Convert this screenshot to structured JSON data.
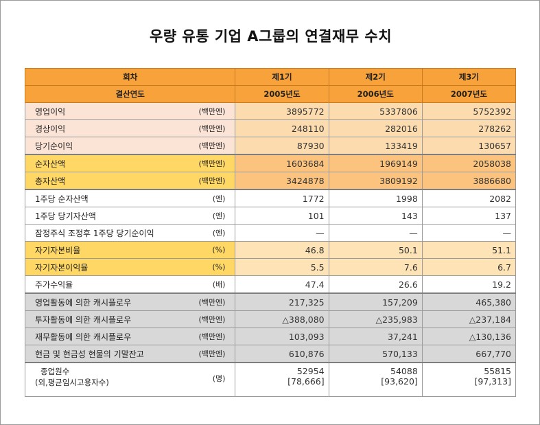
{
  "title": "우량 유통 기업 A그룹의 연결재무 수치",
  "header": {
    "row1_label": "회차",
    "row2_label": "결산연도",
    "periods": [
      "제1기",
      "제2기",
      "제3기"
    ],
    "years": [
      "2005년도",
      "2006년도",
      "2007년도"
    ]
  },
  "rows": [
    {
      "label": "영업이익",
      "unit": "(백만엔)",
      "values": [
        "3895772",
        "5337806",
        "5752392"
      ]
    },
    {
      "label": "경상이익",
      "unit": "(백만엔)",
      "values": [
        "248110",
        "282016",
        "278262"
      ]
    },
    {
      "label": "당기순이익",
      "unit": "(백만엔)",
      "values": [
        "87930",
        "133419",
        "130657"
      ]
    },
    {
      "label": "순자산액",
      "unit": "(백만엔)",
      "values": [
        "1603684",
        "1969149",
        "2058038"
      ]
    },
    {
      "label": "총자산액",
      "unit": "(백만엔)",
      "values": [
        "3424878",
        "3809192",
        "3886680"
      ]
    },
    {
      "label": "1주당 순자산액",
      "unit": "(엔)",
      "values": [
        "1772",
        "1998",
        "2082"
      ]
    },
    {
      "label": "1주당 당기자산액",
      "unit": "(엔)",
      "values": [
        "101",
        "143",
        "137"
      ]
    },
    {
      "label": "잠정주식 조정후 1주당 당기순이익",
      "unit": "(엔)",
      "values": [
        "—",
        "—",
        "—"
      ]
    },
    {
      "label": "자기자본비율",
      "unit": "(%)",
      "values": [
        "46.8",
        "50.1",
        "51.1"
      ]
    },
    {
      "label": "자기자본이익율",
      "unit": "(%)",
      "values": [
        "5.5",
        "7.6",
        "6.7"
      ]
    },
    {
      "label": "주가수익율",
      "unit": "(배)",
      "values": [
        "47.4",
        "26.6",
        "19.2"
      ]
    },
    {
      "label": "영업활동에 의한 캐시플로우",
      "unit": "(백만엔)",
      "values": [
        "217,325",
        "157,209",
        "465,380"
      ]
    },
    {
      "label": "투자활동에 의한 캐시플로우",
      "unit": "(백만엔)",
      "values": [
        "△388,080",
        "△235,983",
        "△237,184"
      ]
    },
    {
      "label": "재무활동에 의한 캐시플로우",
      "unit": "(백만엔)",
      "values": [
        "103,093",
        "37,241",
        "△130,136"
      ]
    },
    {
      "label": "현금 및 현금성 현물의 기말잔고",
      "unit": "(백만엔)",
      "values": [
        "610,876",
        "570,133",
        "667,770"
      ]
    }
  ],
  "last_row": {
    "label": "종업원수",
    "sublabel": "(외,평균임시고용자수)",
    "unit": "(명)",
    "values": [
      "52954",
      "54088",
      "55815"
    ],
    "subvalues": [
      "[78,666]",
      "[93,620]",
      "[97,313]"
    ]
  }
}
